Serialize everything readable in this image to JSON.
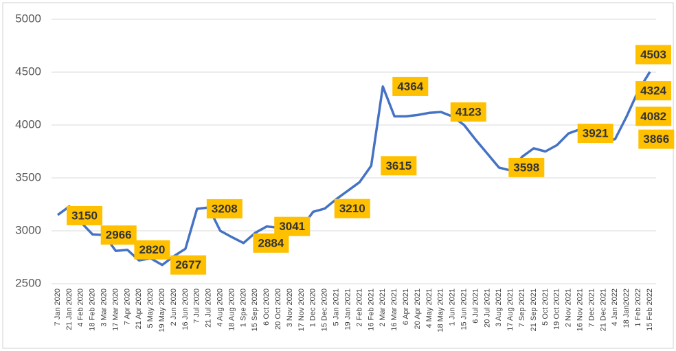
{
  "chart_data": {
    "type": "line",
    "categories": [
      "7 Jan 2020",
      "21 Jan 2020",
      "4 Feb 2020",
      "18 Feb 2020",
      "3 Mar 2020",
      "17 Mar 2020",
      "7 Apr 2020",
      "21 Apr 2020",
      "5 May 2020",
      "19 May 2020",
      "2 Jun 2020",
      "16 Jun 2020",
      "7 Jul 2020",
      "21 Jul 2020",
      "4 Aug 2020",
      "18 Aug 2020",
      "1 Spe 2020",
      "15 Sep 2020",
      "6 Oct 2020",
      "20 Oct 2020",
      "3 Nov 2020",
      "17 Nov 2020",
      "1 Dec 2020",
      "15 Dec 2020",
      "5 Jan 2021",
      "19 Jan 2021",
      "2 Feb 2021",
      "16 Feb 2021",
      "2 Mar 2021",
      "16 Mar 2021",
      "6 Apr 2021",
      "20 Apr 2021",
      "4 May 2021",
      "18 May 2021",
      "1 Jun 2021",
      "15 Jun 2021",
      "6 Jul 2021",
      "20 Jul 2021",
      "3 Aug 2021",
      "17 Aug 2021",
      "7 Sep 2021",
      "21 Sep 2021",
      "5 Oct 2021",
      "19 Oct 2021",
      "2 Nov 2021",
      "16 Nov 2021",
      "7 Dec 2021",
      "21 Dec 2021",
      "4 Jan 2022",
      "18 Jan2022",
      "1 Feb 2022",
      "15 Feb 2022"
    ],
    "values": [
      3150,
      3230,
      3080,
      2966,
      2960,
      2810,
      2820,
      2720,
      2740,
      2677,
      2760,
      2830,
      3208,
      3220,
      3000,
      2940,
      2884,
      2980,
      3041,
      3030,
      3020,
      3030,
      3180,
      3210,
      3300,
      3380,
      3460,
      3615,
      4364,
      4082,
      4082,
      4095,
      4115,
      4123,
      4080,
      4000,
      3860,
      3730,
      3598,
      3570,
      3700,
      3780,
      3750,
      3810,
      3921,
      3960,
      3900,
      3850,
      3866,
      4082,
      4324,
      4503
    ],
    "value_labels": [
      "3150",
      null,
      null,
      "2966",
      null,
      null,
      "2820",
      null,
      null,
      "2677",
      null,
      null,
      "3208",
      null,
      null,
      null,
      "2884",
      null,
      "3041",
      null,
      null,
      null,
      null,
      "3210",
      null,
      null,
      null,
      "3615",
      "4364",
      null,
      null,
      null,
      null,
      "4123",
      null,
      null,
      null,
      null,
      "3598",
      null,
      null,
      null,
      null,
      null,
      "3921",
      null,
      null,
      null,
      "3866",
      "4082",
      "4324",
      "4503"
    ],
    "color": "#4472c4",
    "ylim": [
      2500,
      5000
    ],
    "yticks": [
      2500,
      3000,
      3500,
      4000,
      4500,
      5000
    ],
    "grid": true
  }
}
